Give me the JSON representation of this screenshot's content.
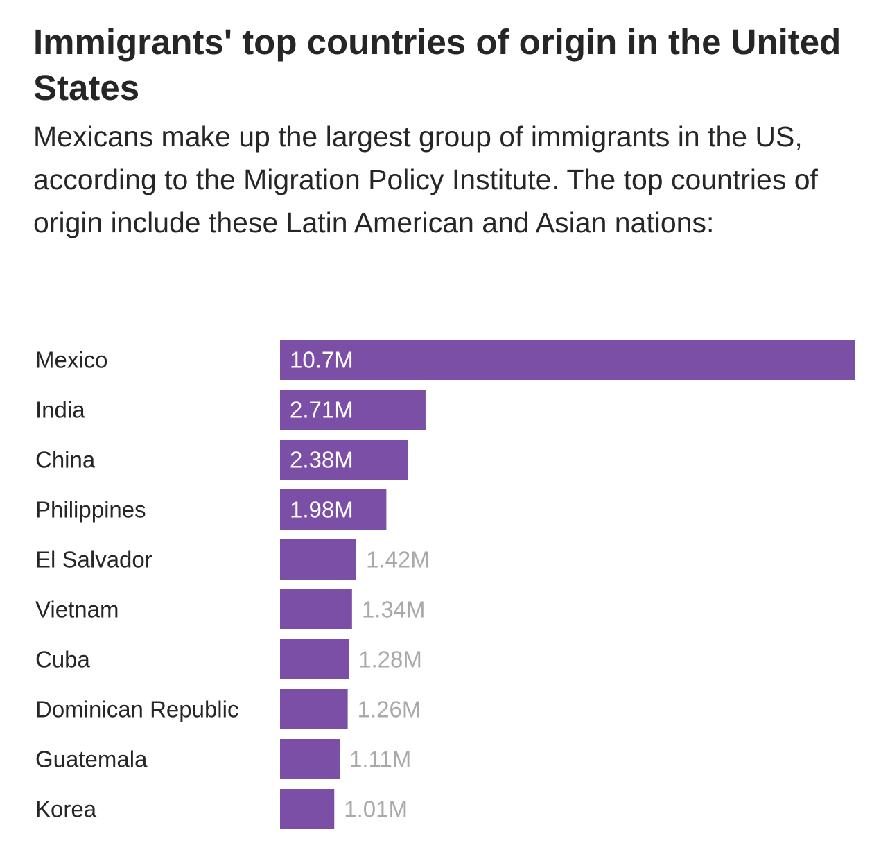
{
  "header": {
    "title": "Immigrants' top countries of origin in the United States",
    "subtitle": "Mexicans make up the largest group of immigrants in the US, according to the Migration Policy Institute. The top countries of origin include these Latin American and Asian nations:"
  },
  "chart_data": {
    "type": "bar",
    "orientation": "horizontal",
    "title": "Immigrants' top countries of origin in the United States",
    "subtitle": "Mexicans make up the largest group of immigrants in the US, according to the Migration Policy Institute. The top countries of origin include these Latin American and Asian nations:",
    "categories": [
      "Mexico",
      "India",
      "China",
      "Philippines",
      "El Salvador",
      "Vietnam",
      "Cuba",
      "Dominican Republic",
      "Guatemala",
      "Korea"
    ],
    "values": [
      10.7,
      2.71,
      2.38,
      1.98,
      1.42,
      1.34,
      1.28,
      1.26,
      1.11,
      1.01
    ],
    "value_labels": [
      "10.7M",
      "2.71M",
      "2.38M",
      "1.98M",
      "1.42M",
      "1.34M",
      "1.28M",
      "1.26M",
      "1.11M",
      "1.01M"
    ],
    "xlim": [
      0,
      10.7
    ],
    "grid": false,
    "legend": "none",
    "colors": {
      "bar": "#7b4fa6",
      "label_inside": "#ffffff",
      "label_outside": "#a9a9a9",
      "category_text": "#262626"
    }
  }
}
